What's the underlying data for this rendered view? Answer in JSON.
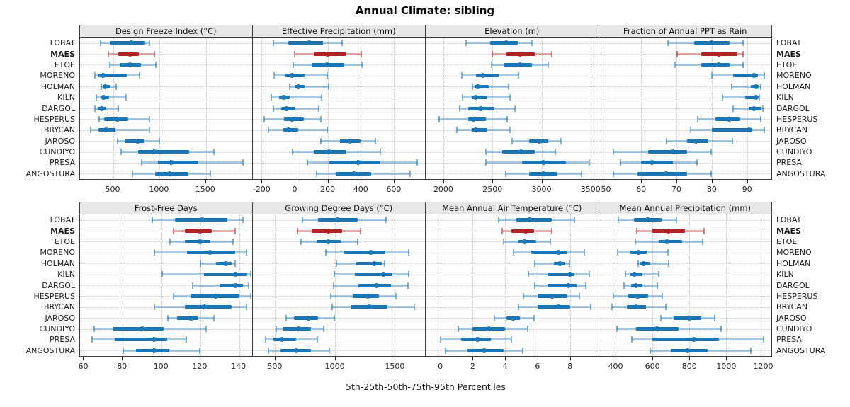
{
  "title": "Annual Climate: sibling",
  "caption": "5th-25th-50th-75th-95th Percentiles",
  "stations": [
    "LOBAT",
    "MAES",
    "ETOE",
    "MORENO",
    "HOLMAN",
    "KILN",
    "DARGOL",
    "HESPERUS",
    "BRYCAN",
    "JAROSO",
    "CUNDIYO",
    "PRESA",
    "ANGOSTURA"
  ],
  "highlight_station": "MAES",
  "colors": {
    "series": "#1b76b5",
    "highlight": "#b22222",
    "grid": "#c6c6c6",
    "header_bg": "#e7e7e7",
    "border": "#3c3c3c"
  },
  "chart_data": [
    {
      "type": "dot-range",
      "title": "Design Freeze Index (°C)",
      "percentile_labels": [
        "5th",
        "25th",
        "50th",
        "75th",
        "95th"
      ],
      "xlim": [
        140,
        1995
      ],
      "ticks": [
        500,
        1000,
        1500
      ],
      "values": [
        [
          360,
          465,
          695,
          845,
          890
        ],
        [
          445,
          555,
          680,
          775,
          950
        ],
        [
          460,
          570,
          680,
          800,
          965
        ],
        [
          300,
          330,
          390,
          645,
          790
        ],
        [
          365,
          385,
          410,
          470,
          535
        ],
        [
          310,
          360,
          400,
          450,
          640
        ],
        [
          300,
          330,
          370,
          420,
          560
        ],
        [
          340,
          400,
          540,
          660,
          890
        ],
        [
          250,
          340,
          420,
          520,
          890
        ],
        [
          540,
          620,
          760,
          840,
          1000
        ],
        [
          580,
          770,
          940,
          1320,
          1590
        ],
        [
          800,
          980,
          1120,
          1420,
          1900
        ],
        [
          700,
          950,
          1110,
          1310,
          1550
        ]
      ]
    },
    {
      "type": "dot-range",
      "title": "Effective Precipitation (mm)",
      "percentile_labels": [
        "5th",
        "25th",
        "50th",
        "75th",
        "95th"
      ],
      "xlim": [
        -255,
        785
      ],
      "ticks": [
        -200,
        0,
        200,
        400,
        600
      ],
      "values": [
        [
          -130,
          -40,
          90,
          170,
          290
        ],
        [
          0,
          115,
          200,
          310,
          405
        ],
        [
          -10,
          105,
          195,
          300,
          410
        ],
        [
          -125,
          -60,
          -15,
          60,
          200
        ],
        [
          -30,
          0,
          25,
          60,
          210
        ],
        [
          -145,
          -95,
          -65,
          -30,
          165
        ],
        [
          -130,
          -80,
          -50,
          0,
          150
        ],
        [
          -185,
          -65,
          -15,
          55,
          160
        ],
        [
          -160,
          -70,
          -35,
          20,
          200
        ],
        [
          155,
          275,
          335,
          400,
          490
        ],
        [
          -15,
          115,
          210,
          310,
          520
        ],
        [
          75,
          210,
          385,
          520,
          745
        ],
        [
          130,
          250,
          360,
          465,
          700
        ]
      ]
    },
    {
      "type": "dot-range",
      "title": "Elevation (m)",
      "percentile_labels": [
        "5th",
        "25th",
        "50th",
        "75th",
        "95th"
      ],
      "xlim": [
        1820,
        3570
      ],
      "ticks": [
        2000,
        2500,
        3000,
        3500
      ],
      "values": [
        [
          2230,
          2480,
          2640,
          2760,
          2905
        ],
        [
          2495,
          2640,
          2780,
          2930,
          3110
        ],
        [
          2490,
          2620,
          2780,
          2900,
          3070
        ],
        [
          2185,
          2330,
          2400,
          2560,
          2770
        ],
        [
          2290,
          2320,
          2350,
          2460,
          2670
        ],
        [
          2190,
          2290,
          2330,
          2450,
          2685
        ],
        [
          2160,
          2250,
          2380,
          2520,
          2730
        ],
        [
          1955,
          2250,
          2310,
          2430,
          2655
        ],
        [
          2135,
          2290,
          2330,
          2450,
          2680
        ],
        [
          2700,
          2870,
          2975,
          3070,
          3200
        ],
        [
          2430,
          2600,
          2790,
          2930,
          3145
        ],
        [
          2430,
          2800,
          3020,
          3250,
          3490
        ],
        [
          2630,
          2870,
          3025,
          3160,
          3410
        ]
      ]
    },
    {
      "type": "dot-range",
      "title": "Fraction of Annual PPT as Rain",
      "percentile_labels": [
        "5th",
        "25th",
        "50th",
        "75th",
        "95th"
      ],
      "xlim": [
        48,
        96.7
      ],
      "ticks": [
        50,
        60,
        70,
        80,
        90
      ],
      "values": [
        [
          67.5,
          75,
          80,
          85,
          89
        ],
        [
          70,
          77,
          82,
          87,
          89
        ],
        [
          69.5,
          77,
          82,
          85,
          89
        ],
        [
          80,
          86,
          92,
          93,
          95
        ],
        [
          85.5,
          91,
          92.5,
          93.3,
          94
        ],
        [
          83,
          89.5,
          92.5,
          93,
          93.5
        ],
        [
          86,
          90.5,
          92,
          94,
          94.6
        ],
        [
          76,
          81,
          85,
          88,
          94
        ],
        [
          74,
          80,
          90.5,
          91.5,
          95
        ],
        [
          67,
          73,
          75.5,
          79,
          86
        ],
        [
          52,
          62,
          69,
          73,
          80
        ],
        [
          54,
          60,
          63,
          69,
          76
        ],
        [
          52,
          59,
          67,
          73,
          80
        ]
      ]
    },
    {
      "type": "dot-range",
      "title": "Frost-Free Days",
      "percentile_labels": [
        "5th",
        "25th",
        "50th",
        "75th",
        "95th"
      ],
      "xlim": [
        58,
        146.5
      ],
      "ticks": [
        60,
        80,
        100,
        120,
        140
      ],
      "values": [
        [
          95,
          107,
          121,
          134,
          142
        ],
        [
          106,
          112,
          120,
          126,
          138
        ],
        [
          104,
          112,
          120,
          125,
          137
        ],
        [
          96,
          113,
          125,
          138,
          144
        ],
        [
          120,
          128,
          133,
          136,
          138
        ],
        [
          100,
          122,
          138,
          144,
          146
        ],
        [
          116,
          130,
          138,
          142,
          145
        ],
        [
          106,
          115,
          128,
          140,
          146
        ],
        [
          96,
          112,
          122,
          136,
          144
        ],
        [
          103,
          108,
          115,
          119,
          127
        ],
        [
          65,
          75,
          90,
          101,
          123
        ],
        [
          64,
          76,
          96,
          103,
          113
        ],
        [
          80,
          87,
          96,
          104,
          120
        ]
      ]
    },
    {
      "type": "dot-range",
      "title": "Growing Degree Days (°C)",
      "percentile_labels": [
        "5th",
        "25th",
        "50th",
        "75th",
        "95th"
      ],
      "xlim": [
        315,
        1745
      ],
      "ticks": [
        500,
        1000,
        1500
      ],
      "values": [
        [
          730,
          860,
          1020,
          1190,
          1430
        ],
        [
          685,
          810,
          945,
          1060,
          1215
        ],
        [
          715,
          850,
          945,
          1050,
          1195
        ],
        [
          920,
          1080,
          1300,
          1420,
          1620
        ],
        [
          1010,
          1180,
          1330,
          1390,
          1415
        ],
        [
          995,
          1170,
          1405,
          1480,
          1620
        ],
        [
          990,
          1195,
          1345,
          1465,
          1610
        ],
        [
          965,
          1150,
          1275,
          1370,
          1510
        ],
        [
          975,
          1135,
          1290,
          1440,
          1665
        ],
        [
          590,
          660,
          780,
          860,
          1000
        ],
        [
          510,
          570,
          700,
          800,
          910
        ],
        [
          420,
          490,
          565,
          675,
          855
        ],
        [
          445,
          545,
          680,
          800,
          955
        ]
      ]
    },
    {
      "type": "dot-range",
      "title": "Mean Annual Air Temperature (°C)",
      "percentile_labels": [
        "5th",
        "25th",
        "50th",
        "75th",
        "95th"
      ],
      "xlim": [
        -0.9,
        9.7
      ],
      "ticks": [
        0,
        2,
        4,
        6,
        8
      ],
      "values": [
        [
          3.6,
          4.7,
          5.5,
          6.9,
          8.3
        ],
        [
          3.8,
          4.4,
          5.3,
          5.8,
          6.9
        ],
        [
          3.9,
          4.8,
          5.2,
          5.9,
          6.8
        ],
        [
          4.5,
          5.6,
          7.3,
          7.8,
          8.9
        ],
        [
          5.8,
          7.0,
          7.4,
          7.7,
          8.0
        ],
        [
          5.4,
          6.6,
          8.0,
          8.3,
          9.2
        ],
        [
          5.8,
          6.6,
          7.9,
          8.4,
          9.0
        ],
        [
          5.1,
          6.0,
          6.9,
          7.8,
          8.6
        ],
        [
          4.8,
          6.0,
          7.3,
          8.0,
          9.3
        ],
        [
          3.3,
          4.1,
          4.5,
          4.9,
          5.8
        ],
        [
          1.1,
          2.0,
          3.0,
          4.0,
          5.4
        ],
        [
          0.0,
          1.3,
          2.3,
          3.1,
          4.4
        ],
        [
          0.3,
          1.7,
          2.7,
          3.9,
          5.1
        ]
      ]
    },
    {
      "type": "dot-range",
      "title": "Mean Annual Precipitation (mm)",
      "percentile_labels": [
        "5th",
        "25th",
        "50th",
        "75th",
        "95th"
      ],
      "xlim": [
        310,
        1240
      ],
      "ticks": [
        400,
        600,
        800,
        1000,
        1200
      ],
      "values": [
        [
          415,
          500,
          575,
          650,
          730
        ],
        [
          515,
          600,
          685,
          775,
          880
        ],
        [
          505,
          635,
          680,
          760,
          875
        ],
        [
          410,
          480,
          525,
          570,
          685
        ],
        [
          520,
          535,
          550,
          590,
          690
        ],
        [
          450,
          480,
          500,
          545,
          635
        ],
        [
          445,
          485,
          510,
          545,
          630
        ],
        [
          385,
          470,
          520,
          575,
          655
        ],
        [
          380,
          460,
          510,
          565,
          675
        ],
        [
          645,
          715,
          800,
          865,
          940
        ],
        [
          405,
          510,
          625,
          740,
          975
        ],
        [
          485,
          600,
          825,
          960,
          1205
        ],
        [
          585,
          700,
          790,
          900,
          1135
        ]
      ]
    }
  ]
}
